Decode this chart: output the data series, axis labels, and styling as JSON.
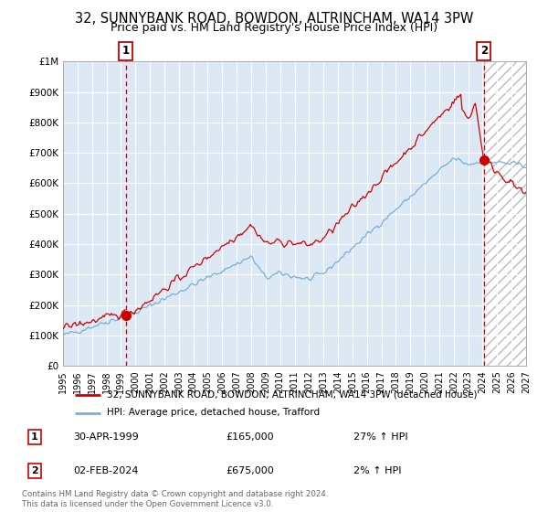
{
  "title": "32, SUNNYBANK ROAD, BOWDON, ALTRINCHAM, WA14 3PW",
  "subtitle": "Price paid vs. HM Land Registry's House Price Index (HPI)",
  "ylim": [
    0,
    1000000
  ],
  "yticks": [
    0,
    100000,
    200000,
    300000,
    400000,
    500000,
    600000,
    700000,
    800000,
    900000,
    1000000
  ],
  "ytick_labels": [
    "£0",
    "£100K",
    "£200K",
    "£300K",
    "£400K",
    "£500K",
    "£600K",
    "£700K",
    "£800K",
    "£900K",
    "£1M"
  ],
  "xlim_start": 1995.0,
  "xlim_end": 2027.0,
  "xticks": [
    1995,
    1996,
    1997,
    1998,
    1999,
    2000,
    2001,
    2002,
    2003,
    2004,
    2005,
    2006,
    2007,
    2008,
    2009,
    2010,
    2011,
    2012,
    2013,
    2014,
    2015,
    2016,
    2017,
    2018,
    2019,
    2020,
    2021,
    2022,
    2023,
    2024,
    2025,
    2026,
    2027
  ],
  "marker1_x": 1999.33,
  "marker1_y": 165000,
  "marker1_label": "1",
  "marker1_date": "30-APR-1999",
  "marker1_price": "£165,000",
  "marker1_hpi": "27% ↑ HPI",
  "marker2_x": 2024.08,
  "marker2_y": 675000,
  "marker2_label": "2",
  "marker2_date": "02-FEB-2024",
  "marker2_price": "£675,000",
  "marker2_hpi": "2% ↑ HPI",
  "red_line_color": "#cc0000",
  "blue_line_color": "#7aadd4",
  "bg_color": "#dce9f5",
  "grid_color": "#ffffff",
  "vline_color": "#cc0000",
  "legend_label_red": "32, SUNNYBANK ROAD, BOWDON, ALTRINCHAM, WA14 3PW (detached house)",
  "legend_label_blue": "HPI: Average price, detached house, Trafford",
  "copyright_text": "Contains HM Land Registry data © Crown copyright and database right 2024.\nThis data is licensed under the Open Government Licence v3.0.",
  "title_fontsize": 10.5,
  "subtitle_fontsize": 9
}
